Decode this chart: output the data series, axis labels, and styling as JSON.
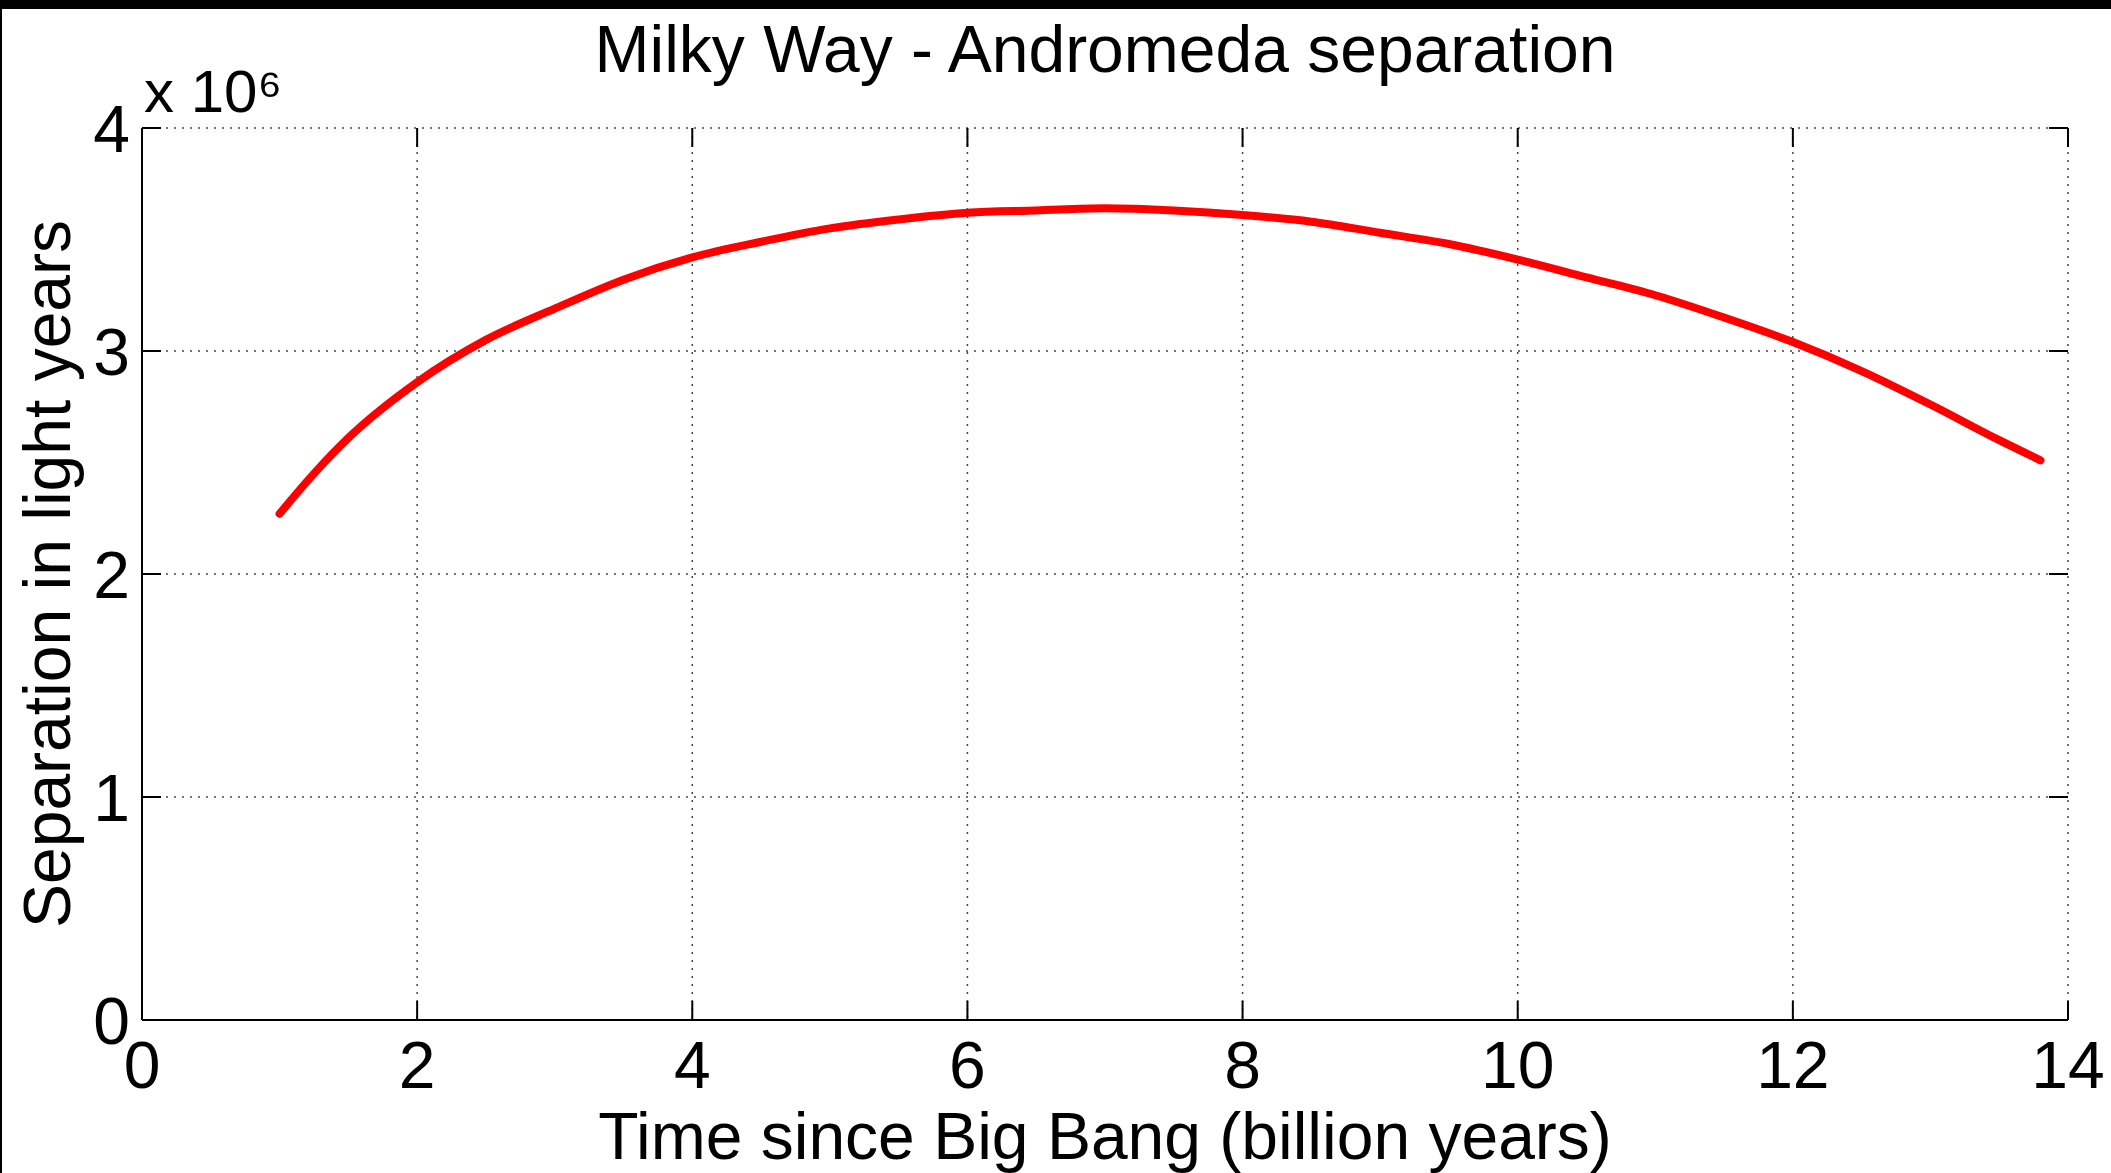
{
  "chart_data": {
    "type": "line",
    "title": "Milky Way - Andromeda separation",
    "xlabel": "Time since Big Bang (billion years)",
    "ylabel": "Separation in light years",
    "annotations": [
      "x 10⁶"
    ],
    "x": [
      1.0,
      1.25,
      1.5,
      2.0,
      2.5,
      3.0,
      3.5,
      4.0,
      4.5,
      5.0,
      5.5,
      6.0,
      6.5,
      7.0,
      7.5,
      8.0,
      8.5,
      9.0,
      9.5,
      10.0,
      10.5,
      11.0,
      11.5,
      12.0,
      12.5,
      13.0,
      13.5,
      13.8
    ],
    "series": [
      {
        "color": "#ff0000",
        "values": [
          2.27,
          2.45,
          2.61,
          2.86,
          3.05,
          3.19,
          3.32,
          3.42,
          3.49,
          3.55,
          3.59,
          3.62,
          3.63,
          3.64,
          3.63,
          3.61,
          3.58,
          3.53,
          3.48,
          3.41,
          3.33,
          3.25,
          3.15,
          3.04,
          2.91,
          2.76,
          2.6,
          2.51
        ]
      }
    ],
    "xlim": [
      0,
      14
    ],
    "ylim": [
      0,
      4
    ],
    "xticks": [
      0,
      2,
      4,
      6,
      8,
      10,
      12,
      14
    ],
    "yticks": [
      0,
      1,
      2,
      3,
      4
    ],
    "grid": true,
    "line_style": "solid"
  }
}
